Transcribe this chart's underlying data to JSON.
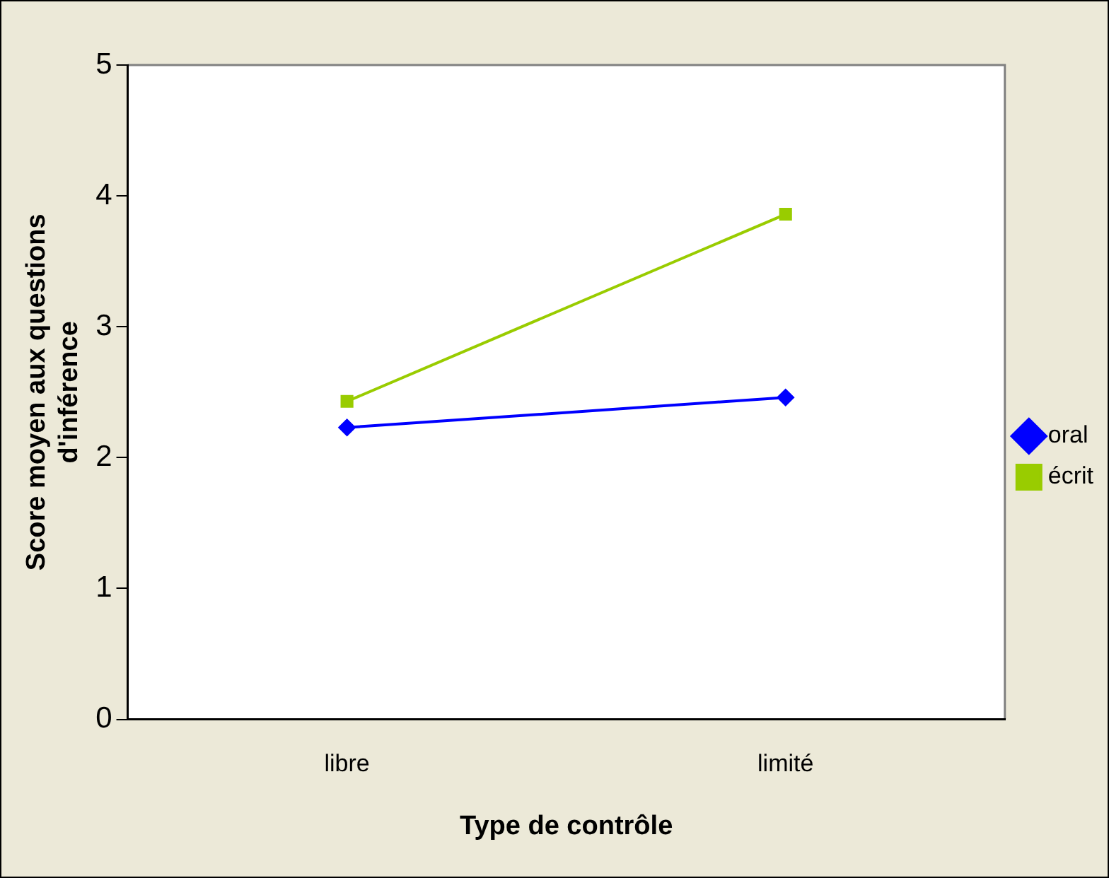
{
  "chart_data": {
    "type": "line",
    "xlabel": "Type de contrôle",
    "ylabel": "Score moyen aux questions\nd'inférence",
    "categories": [
      "libre",
      "limité"
    ],
    "series": [
      {
        "name": "oral",
        "color": "#0000ff",
        "marker": "diamond",
        "values": [
          2.23,
          2.46
        ]
      },
      {
        "name": "écrit",
        "color": "#99cc00",
        "marker": "square",
        "values": [
          2.43,
          3.86
        ]
      }
    ],
    "ylim": [
      0,
      5
    ],
    "yticks": [
      0,
      1,
      2,
      3,
      4,
      5
    ],
    "grid": false,
    "legend": "right",
    "line_style": "solid"
  }
}
